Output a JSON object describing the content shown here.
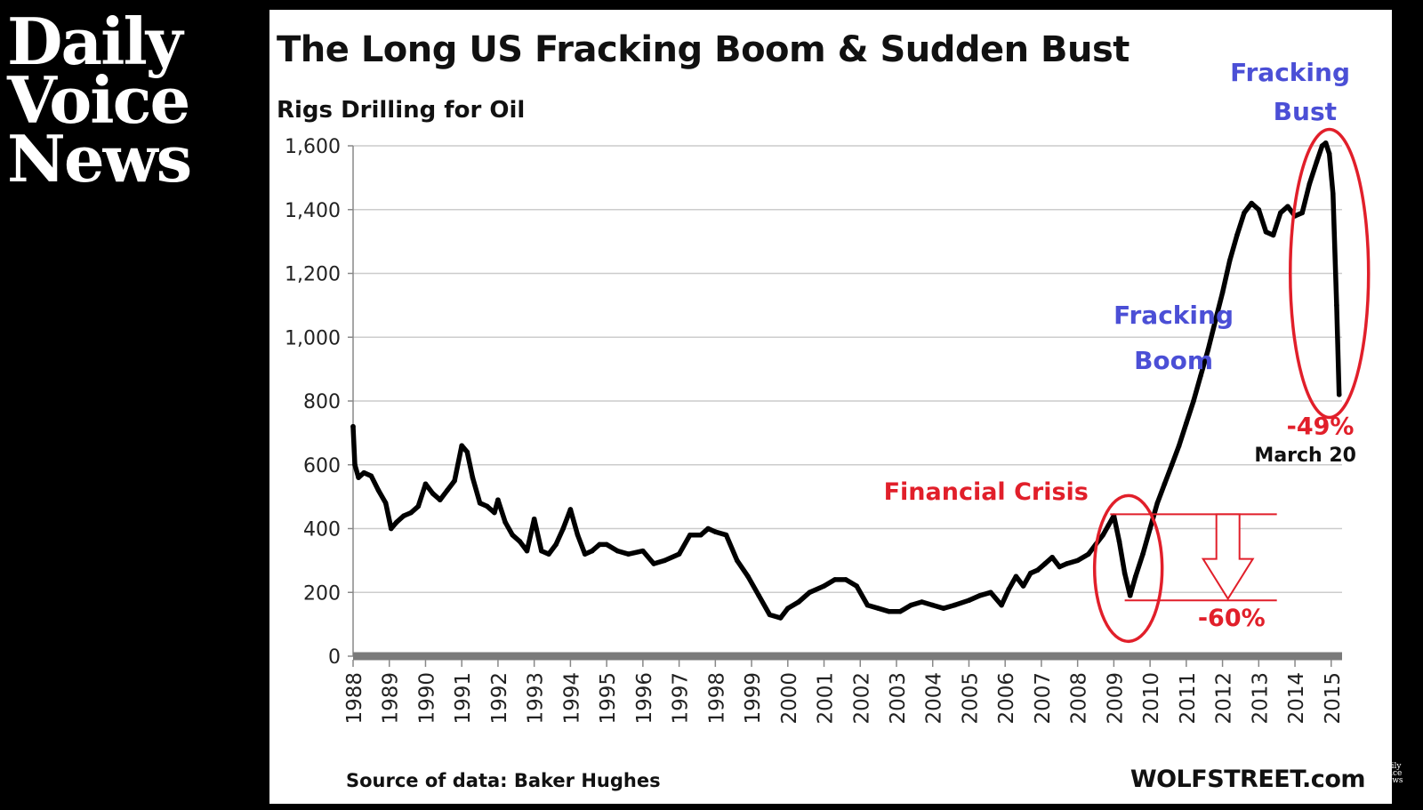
{
  "logo": {
    "line1": "Daily",
    "line2": "Voice",
    "line3": "News"
  },
  "mini_logo": {
    "line1": "Daily",
    "line2": "Voice",
    "line3": "News"
  },
  "chart_data": {
    "type": "line",
    "title": "The Long US Fracking Boom & Sudden Bust",
    "ylabel": "Rigs Drilling for Oil",
    "source": "Source of data: Baker Hughes",
    "brand": "WOLFSTREET.com",
    "ylim": [
      0,
      1600
    ],
    "yticks": [
      0,
      200,
      400,
      600,
      800,
      1000,
      1200,
      1400,
      1600
    ],
    "ytick_labels": [
      "0",
      "200",
      "400",
      "600",
      "800",
      "1,000",
      "1,200",
      "1,400",
      "1,600"
    ],
    "xlim": [
      1988,
      2015.3
    ],
    "xticks": [
      1988,
      1989,
      1990,
      1991,
      1992,
      1993,
      1994,
      1995,
      1996,
      1997,
      1998,
      1999,
      2000,
      2001,
      2002,
      2003,
      2004,
      2005,
      2006,
      2007,
      2008,
      2009,
      2010,
      2011,
      2012,
      2013,
      2014,
      2015
    ],
    "grid": true,
    "series": [
      {
        "color": "#000000",
        "x": [
          1988.0,
          1988.05,
          1988.15,
          1988.3,
          1988.5,
          1988.7,
          1988.9,
          1989.05,
          1989.2,
          1989.4,
          1989.6,
          1989.8,
          1990.0,
          1990.2,
          1990.4,
          1990.6,
          1990.8,
          1991.0,
          1991.15,
          1991.3,
          1991.5,
          1991.7,
          1991.9,
          1992.0,
          1992.2,
          1992.4,
          1992.6,
          1992.8,
          1993.0,
          1993.2,
          1993.4,
          1993.6,
          1993.8,
          1994.0,
          1994.2,
          1994.4,
          1994.6,
          1994.8,
          1995.0,
          1995.3,
          1995.6,
          1996.0,
          1996.3,
          1996.6,
          1997.0,
          1997.3,
          1997.6,
          1997.8,
          1998.0,
          1998.3,
          1998.6,
          1998.9,
          1999.2,
          1999.5,
          1999.8,
          2000.0,
          2000.3,
          2000.6,
          2001.0,
          2001.3,
          2001.6,
          2001.9,
          2002.2,
          2002.5,
          2002.8,
          2003.1,
          2003.4,
          2003.7,
          2004.0,
          2004.3,
          2004.6,
          2005.0,
          2005.3,
          2005.6,
          2005.9,
          2006.1,
          2006.3,
          2006.5,
          2006.7,
          2006.9,
          2007.1,
          2007.3,
          2007.5,
          2007.7,
          2008.0,
          2008.3,
          2008.5,
          2008.7,
          2008.85,
          2009.0,
          2009.15,
          2009.3,
          2009.45,
          2009.6,
          2009.8,
          2010.0,
          2010.2,
          2010.4,
          2010.6,
          2010.8,
          2011.0,
          2011.2,
          2011.4,
          2011.6,
          2011.8,
          2012.0,
          2012.2,
          2012.4,
          2012.6,
          2012.8,
          2013.0,
          2013.2,
          2013.4,
          2013.6,
          2013.8,
          2014.0,
          2014.2,
          2014.4,
          2014.6,
          2014.75,
          2014.85,
          2014.95,
          2015.05,
          2015.15,
          2015.22
        ],
        "y": [
          720,
          600,
          560,
          575,
          565,
          520,
          480,
          400,
          420,
          440,
          450,
          470,
          540,
          510,
          490,
          520,
          550,
          660,
          640,
          560,
          480,
          470,
          450,
          490,
          420,
          380,
          360,
          330,
          430,
          330,
          320,
          350,
          400,
          460,
          380,
          320,
          330,
          350,
          350,
          330,
          320,
          330,
          290,
          300,
          320,
          380,
          380,
          400,
          390,
          380,
          300,
          250,
          190,
          130,
          120,
          150,
          170,
          200,
          220,
          240,
          240,
          220,
          160,
          150,
          140,
          140,
          160,
          170,
          160,
          150,
          160,
          175,
          190,
          200,
          160,
          210,
          250,
          220,
          260,
          270,
          290,
          310,
          280,
          290,
          300,
          320,
          350,
          380,
          410,
          440,
          360,
          260,
          190,
          250,
          320,
          400,
          480,
          540,
          600,
          660,
          730,
          800,
          880,
          960,
          1050,
          1140,
          1240,
          1320,
          1390,
          1420,
          1400,
          1330,
          1320,
          1390,
          1410,
          1380,
          1390,
          1480,
          1550,
          1600,
          1609,
          1575,
          1450,
          1100,
          820
        ]
      }
    ],
    "annotations": {
      "boom": [
        "Fracking",
        "Boom"
      ],
      "bust": [
        "Fracking",
        "Bust"
      ],
      "crisis": "Financial Crisis",
      "crisis_pct": "-60%",
      "bust_pct": "-49%",
      "bust_date": "March 20"
    },
    "colors": {
      "accent_blue": "#4b4fd6",
      "accent_red": "#e11f2a",
      "grid": "#cccccc",
      "line": "#000000"
    }
  }
}
